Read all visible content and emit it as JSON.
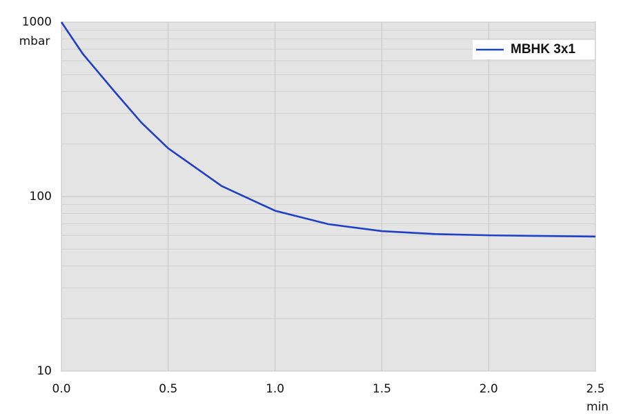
{
  "chart_data": {
    "type": "line",
    "y_label": "mbar",
    "x_label": "min",
    "x": [
      0,
      0.1,
      0.25,
      0.375,
      0.5,
      0.75,
      1.0,
      1.25,
      1.5,
      1.75,
      2.0,
      2.25,
      2.5
    ],
    "series": [
      {
        "name": "MBHK 3x1",
        "color": "#1f3fc4",
        "values": [
          1000,
          658,
          398,
          265,
          189,
          115,
          83,
          69.5,
          63.4,
          61,
          60,
          59.5,
          59
        ]
      }
    ],
    "xlim": [
      0,
      2.5
    ],
    "xticks": [
      {
        "value": 0,
        "label": "0.0"
      },
      0.5,
      {
        "value": 1,
        "label": "1.0"
      },
      1.5,
      {
        "value": 2,
        "label": "2.0"
      },
      2.5
    ],
    "ylim": [
      10,
      1000
    ],
    "yticks": [
      10,
      100,
      1000
    ],
    "log_y": true,
    "grid": true,
    "legend": "upper right"
  }
}
